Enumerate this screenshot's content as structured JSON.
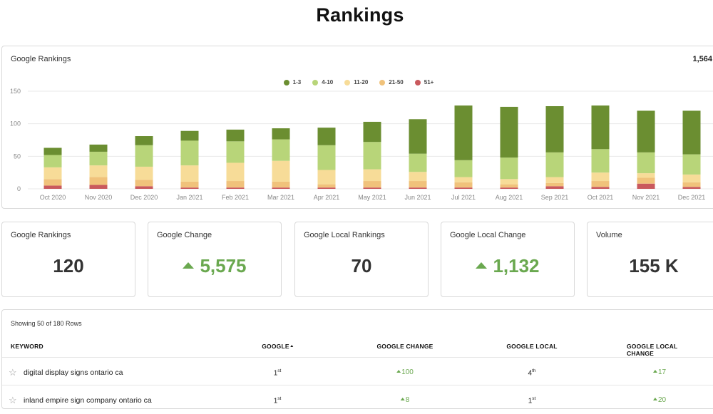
{
  "page": {
    "title": "Rankings"
  },
  "chart": {
    "title": "Google Rankings",
    "total": "1,564"
  },
  "chart_data": {
    "type": "bar",
    "stacked": true,
    "categories": [
      "Oct 2020",
      "Nov 2020",
      "Dec 2020",
      "Jan 2021",
      "Feb 2021",
      "Mar 2021",
      "Apr 2021",
      "May 2021",
      "Jun 2021",
      "Jul 2021",
      "Aug 2021",
      "Sep 2021",
      "Oct 2021",
      "Nov 2021",
      "Dec 2021"
    ],
    "ylim": [
      0,
      150
    ],
    "yticks": [
      0,
      50,
      100,
      150
    ],
    "grid": true,
    "legend_position": "top-center",
    "series": [
      {
        "name": "51+",
        "color": "#c9595d",
        "values": [
          5,
          6,
          4,
          2,
          2,
          2,
          2,
          2,
          2,
          2,
          2,
          4,
          3,
          8,
          3
        ]
      },
      {
        "name": "21-50",
        "color": "#f0c27b",
        "values": [
          10,
          12,
          10,
          9,
          10,
          9,
          5,
          10,
          10,
          8,
          5,
          5,
          9,
          9,
          7
        ]
      },
      {
        "name": "11-20",
        "color": "#f7dc98",
        "values": [
          18,
          18,
          20,
          25,
          28,
          32,
          22,
          18,
          14,
          8,
          8,
          9,
          13,
          7,
          12
        ]
      },
      {
        "name": "4-10",
        "color": "#b8d579",
        "values": [
          19,
          21,
          33,
          38,
          33,
          33,
          38,
          42,
          28,
          26,
          33,
          38,
          36,
          32,
          31
        ]
      },
      {
        "name": "1-3",
        "color": "#6b8e31",
        "values": [
          11,
          11,
          14,
          15,
          18,
          17,
          27,
          31,
          53,
          84,
          78,
          71,
          67,
          64,
          67
        ]
      }
    ],
    "legend_order": [
      "1-3",
      "4-10",
      "11-20",
      "21-50",
      "51+"
    ]
  },
  "kpis": [
    {
      "label": "Google Rankings",
      "value": "120",
      "trend": "none"
    },
    {
      "label": "Google Change",
      "value": "5,575",
      "trend": "up"
    },
    {
      "label": "Google Local Rankings",
      "value": "70",
      "trend": "none"
    },
    {
      "label": "Google Local Change",
      "value": "1,132",
      "trend": "up"
    },
    {
      "label": "Volume",
      "value": "155 K",
      "trend": "none"
    }
  ],
  "table": {
    "rows_info": "Showing 50 of 180 Rows",
    "headers": {
      "keyword": "KEYWORD",
      "google": "GOOGLE",
      "google_change": "GOOGLE CHANGE",
      "google_local": "GOOGLE LOCAL",
      "google_local_change": "GOOGLE LOCAL CHANGE"
    },
    "rows": [
      {
        "keyword": "digital display signs ontario ca",
        "google": "1",
        "google_suffix": "st",
        "google_change": "100",
        "google_local": "4",
        "google_local_suffix": "th",
        "google_local_change": "17"
      },
      {
        "keyword": "inland empire sign company ontario ca",
        "google": "1",
        "google_suffix": "st",
        "google_change": "8",
        "google_local": "1",
        "google_local_suffix": "st",
        "google_local_change": "20"
      }
    ]
  },
  "icons": {
    "star": "star-outline-icon",
    "trend": "triangle-up-icon",
    "sort": "sort-ascending-icon"
  }
}
